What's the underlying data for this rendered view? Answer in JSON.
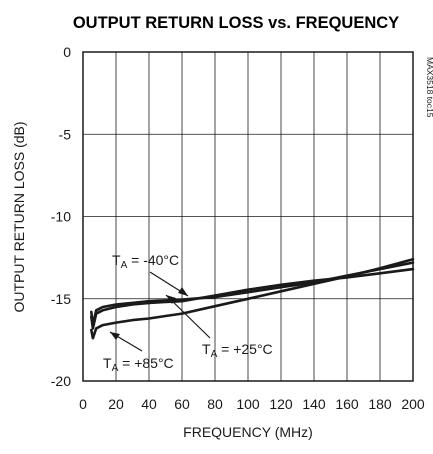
{
  "chart_data": {
    "type": "line",
    "title": "OUTPUT RETURN LOSS vs. FREQUENCY",
    "xlabel": "FREQUENCY (MHz)",
    "ylabel": "OUTPUT RETURN LOSS (dB)",
    "xlim": [
      0,
      200
    ],
    "ylim": [
      -20,
      0
    ],
    "x_ticks": [
      "0",
      "20",
      "40",
      "60",
      "80",
      "100",
      "120",
      "140",
      "160",
      "180",
      "200"
    ],
    "y_ticks": [
      "0",
      "-5",
      "-10",
      "-15",
      "-20"
    ],
    "grid": true,
    "series": [
      {
        "name": "-40°C",
        "x": [
          5,
          6,
          8,
          12,
          20,
          30,
          40,
          50,
          60,
          80,
          100,
          120,
          140,
          160,
          180,
          200
        ],
        "y": [
          -15.8,
          -16.6,
          -15.7,
          -15.5,
          -15.35,
          -15.25,
          -15.15,
          -15.1,
          -15.05,
          -14.9,
          -14.6,
          -14.3,
          -14.0,
          -13.6,
          -13.2,
          -12.8
        ]
      },
      {
        "name": "+25°C",
        "x": [
          5,
          6,
          8,
          12,
          20,
          30,
          40,
          50,
          60,
          80,
          100,
          120,
          140,
          160,
          180,
          200
        ],
        "y": [
          -16.1,
          -16.8,
          -15.9,
          -15.7,
          -15.5,
          -15.35,
          -15.25,
          -15.2,
          -15.15,
          -14.8,
          -14.45,
          -14.15,
          -13.9,
          -13.7,
          -13.45,
          -13.2
        ]
      },
      {
        "name": "+85°C",
        "x": [
          5,
          6,
          8,
          12,
          20,
          30,
          40,
          50,
          60,
          80,
          100,
          120,
          140,
          160,
          180,
          200
        ],
        "y": [
          -16.9,
          -17.4,
          -16.8,
          -16.6,
          -16.45,
          -16.3,
          -16.2,
          -16.05,
          -15.9,
          -15.45,
          -15.0,
          -14.55,
          -14.1,
          -13.65,
          -13.15,
          -12.6
        ]
      }
    ],
    "annotations": [
      {
        "sub": "A",
        "label_pre": "T",
        "label_post": " = -40°C"
      },
      {
        "sub": "A",
        "label_pre": "T",
        "label_post": " = +25°C"
      },
      {
        "sub": "A",
        "label_pre": "T",
        "label_post": " = +85°C"
      }
    ],
    "figure_code": "MAX3518 toc15",
    "colors": {
      "line": "#1a1a1a",
      "grid": "#1a1a1a"
    }
  }
}
